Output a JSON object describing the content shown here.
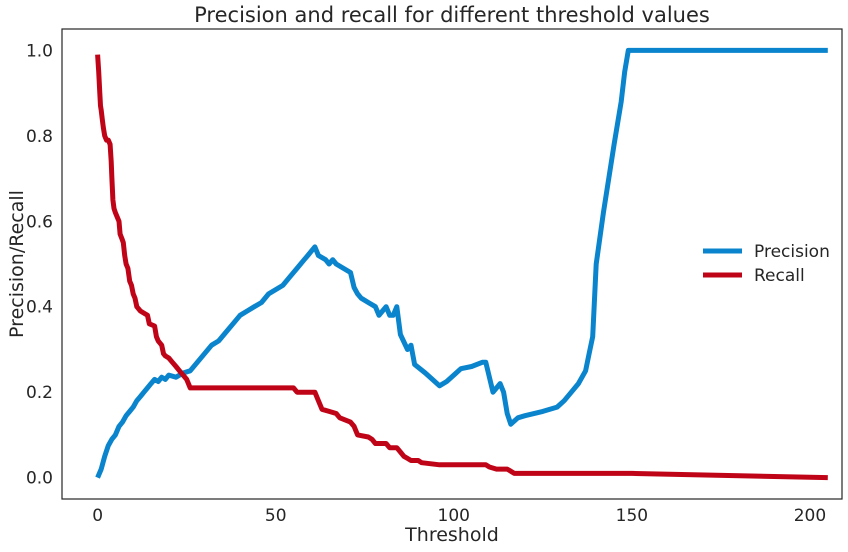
{
  "chart_data": {
    "type": "line",
    "title": "Precision and recall for different threshold values",
    "xlabel": "Threshold",
    "ylabel": "Precision/Recall",
    "xlim": [
      -10,
      209
    ],
    "ylim": [
      -0.05,
      1.05
    ],
    "xticks": [
      0,
      50,
      100,
      150,
      200
    ],
    "yticks": [
      0.0,
      0.2,
      0.4,
      0.6,
      0.8,
      1.0
    ],
    "ytick_labels": [
      "0.0",
      "0.2",
      "0.4",
      "0.6",
      "0.8",
      "1.0"
    ],
    "grid": false,
    "legend_position": "center-right",
    "series": [
      {
        "name": "Precision",
        "color": "#0a84cc",
        "points": [
          [
            0,
            0.0
          ],
          [
            1,
            0.02
          ],
          [
            2,
            0.05
          ],
          [
            3,
            0.075
          ],
          [
            4,
            0.09
          ],
          [
            5,
            0.1
          ],
          [
            6,
            0.12
          ],
          [
            7,
            0.13
          ],
          [
            8,
            0.145
          ],
          [
            9,
            0.155
          ],
          [
            10,
            0.165
          ],
          [
            11,
            0.18
          ],
          [
            12,
            0.19
          ],
          [
            13,
            0.2
          ],
          [
            14,
            0.21
          ],
          [
            15,
            0.22
          ],
          [
            16,
            0.23
          ],
          [
            17,
            0.225
          ],
          [
            18,
            0.235
          ],
          [
            19,
            0.23
          ],
          [
            20,
            0.24
          ],
          [
            22,
            0.235
          ],
          [
            24,
            0.245
          ],
          [
            26,
            0.25
          ],
          [
            28,
            0.27
          ],
          [
            30,
            0.29
          ],
          [
            32,
            0.31
          ],
          [
            34,
            0.32
          ],
          [
            36,
            0.34
          ],
          [
            38,
            0.36
          ],
          [
            40,
            0.38
          ],
          [
            42,
            0.39
          ],
          [
            44,
            0.4
          ],
          [
            46,
            0.41
          ],
          [
            48,
            0.43
          ],
          [
            50,
            0.44
          ],
          [
            52,
            0.45
          ],
          [
            54,
            0.47
          ],
          [
            56,
            0.49
          ],
          [
            58,
            0.51
          ],
          [
            59,
            0.52
          ],
          [
            60,
            0.53
          ],
          [
            61,
            0.54
          ],
          [
            62,
            0.52
          ],
          [
            64,
            0.51
          ],
          [
            65,
            0.5
          ],
          [
            66,
            0.51
          ],
          [
            67,
            0.5
          ],
          [
            70,
            0.485
          ],
          [
            71,
            0.48
          ],
          [
            72,
            0.445
          ],
          [
            73,
            0.43
          ],
          [
            74,
            0.42
          ],
          [
            76,
            0.41
          ],
          [
            78,
            0.4
          ],
          [
            79,
            0.38
          ],
          [
            80,
            0.39
          ],
          [
            81,
            0.4
          ],
          [
            82,
            0.38
          ],
          [
            83,
            0.38
          ],
          [
            84,
            0.4
          ],
          [
            85,
            0.335
          ],
          [
            87,
            0.3
          ],
          [
            88,
            0.31
          ],
          [
            89,
            0.265
          ],
          [
            92,
            0.245
          ],
          [
            94,
            0.23
          ],
          [
            96,
            0.215
          ],
          [
            98,
            0.225
          ],
          [
            100,
            0.24
          ],
          [
            102,
            0.255
          ],
          [
            105,
            0.26
          ],
          [
            108,
            0.27
          ],
          [
            109,
            0.27
          ],
          [
            111,
            0.2
          ],
          [
            113,
            0.22
          ],
          [
            114,
            0.2
          ],
          [
            115,
            0.15
          ],
          [
            116,
            0.125
          ],
          [
            118,
            0.14
          ],
          [
            120,
            0.145
          ],
          [
            125,
            0.155
          ],
          [
            129,
            0.165
          ],
          [
            131,
            0.18
          ],
          [
            133,
            0.2
          ],
          [
            135,
            0.22
          ],
          [
            137,
            0.25
          ],
          [
            138,
            0.29
          ],
          [
            139,
            0.33
          ],
          [
            140,
            0.5
          ],
          [
            142,
            0.62
          ],
          [
            145,
            0.78
          ],
          [
            147,
            0.88
          ],
          [
            148,
            0.95
          ],
          [
            149,
            1.0
          ],
          [
            205,
            1.0
          ]
        ]
      },
      {
        "name": "Recall",
        "color": "#c00418",
        "points": [
          [
            0,
            0.99
          ],
          [
            0.3,
            0.95
          ],
          [
            0.6,
            0.9
          ],
          [
            0.8,
            0.87
          ],
          [
            1,
            0.86
          ],
          [
            1.3,
            0.84
          ],
          [
            1.6,
            0.82
          ],
          [
            2,
            0.8
          ],
          [
            2.5,
            0.79
          ],
          [
            3,
            0.79
          ],
          [
            3.5,
            0.78
          ],
          [
            3.8,
            0.74
          ],
          [
            4,
            0.7
          ],
          [
            4.3,
            0.65
          ],
          [
            4.6,
            0.63
          ],
          [
            5,
            0.62
          ],
          [
            5.5,
            0.61
          ],
          [
            6,
            0.6
          ],
          [
            6.3,
            0.57
          ],
          [
            6.8,
            0.56
          ],
          [
            7.2,
            0.55
          ],
          [
            7.6,
            0.52
          ],
          [
            8,
            0.5
          ],
          [
            8.5,
            0.49
          ],
          [
            9,
            0.46
          ],
          [
            9.5,
            0.45
          ],
          [
            10,
            0.43
          ],
          [
            10.5,
            0.42
          ],
          [
            11,
            0.4
          ],
          [
            12,
            0.39
          ],
          [
            13,
            0.385
          ],
          [
            14,
            0.38
          ],
          [
            14.5,
            0.36
          ],
          [
            16,
            0.355
          ],
          [
            16.5,
            0.33
          ],
          [
            17,
            0.32
          ],
          [
            18,
            0.31
          ],
          [
            18.5,
            0.29
          ],
          [
            19,
            0.285
          ],
          [
            20,
            0.28
          ],
          [
            21,
            0.27
          ],
          [
            22,
            0.26
          ],
          [
            23,
            0.25
          ],
          [
            24,
            0.24
          ],
          [
            25,
            0.23
          ],
          [
            26,
            0.21
          ],
          [
            55,
            0.21
          ],
          [
            56,
            0.2
          ],
          [
            61,
            0.2
          ],
          [
            62,
            0.18
          ],
          [
            63,
            0.16
          ],
          [
            65,
            0.155
          ],
          [
            67,
            0.15
          ],
          [
            68,
            0.14
          ],
          [
            71,
            0.13
          ],
          [
            72,
            0.12
          ],
          [
            73,
            0.1
          ],
          [
            76,
            0.095
          ],
          [
            77,
            0.09
          ],
          [
            78,
            0.08
          ],
          [
            81,
            0.08
          ],
          [
            82,
            0.07
          ],
          [
            84,
            0.07
          ],
          [
            85,
            0.06
          ],
          [
            86,
            0.05
          ],
          [
            87,
            0.045
          ],
          [
            88,
            0.04
          ],
          [
            90,
            0.04
          ],
          [
            91,
            0.035
          ],
          [
            96,
            0.03
          ],
          [
            109,
            0.03
          ],
          [
            110,
            0.025
          ],
          [
            112,
            0.02
          ],
          [
            115,
            0.02
          ],
          [
            116,
            0.015
          ],
          [
            117,
            0.01
          ],
          [
            150,
            0.01
          ],
          [
            205,
            0.0
          ]
        ]
      }
    ]
  }
}
